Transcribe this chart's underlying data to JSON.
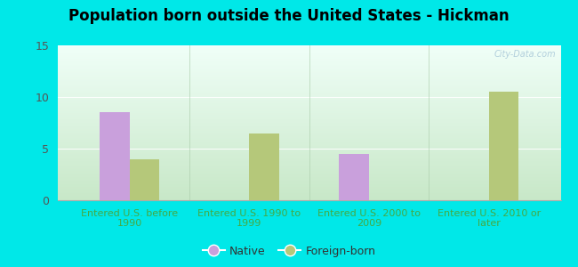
{
  "title": "Population born outside the United States - Hickman",
  "categories": [
    "Entered U.S. before\n1990",
    "Entered U.S. 1990 to\n1999",
    "Entered U.S. 2000 to\n2009",
    "Entered U.S. 2010 or\nlater"
  ],
  "native_values": [
    8.5,
    0,
    4.5,
    0
  ],
  "foreign_values": [
    4.0,
    6.5,
    0,
    10.5
  ],
  "native_color": "#c9a0dc",
  "foreign_color": "#b5c87a",
  "ylim": [
    0,
    15
  ],
  "yticks": [
    0,
    5,
    10,
    15
  ],
  "legend_native": "Native",
  "legend_foreign": "Foreign-born",
  "outer_bg": "#00e8e8",
  "watermark": "City-Data.com",
  "bar_width": 0.25,
  "bg_top": "#f0fff8",
  "bg_bottom": "#c8e8c8",
  "xlabel_color": "#44aa44",
  "ytick_color": "#555555",
  "grid_color": "#d0e8d0",
  "title_fontsize": 12,
  "xlabel_fontsize": 8
}
